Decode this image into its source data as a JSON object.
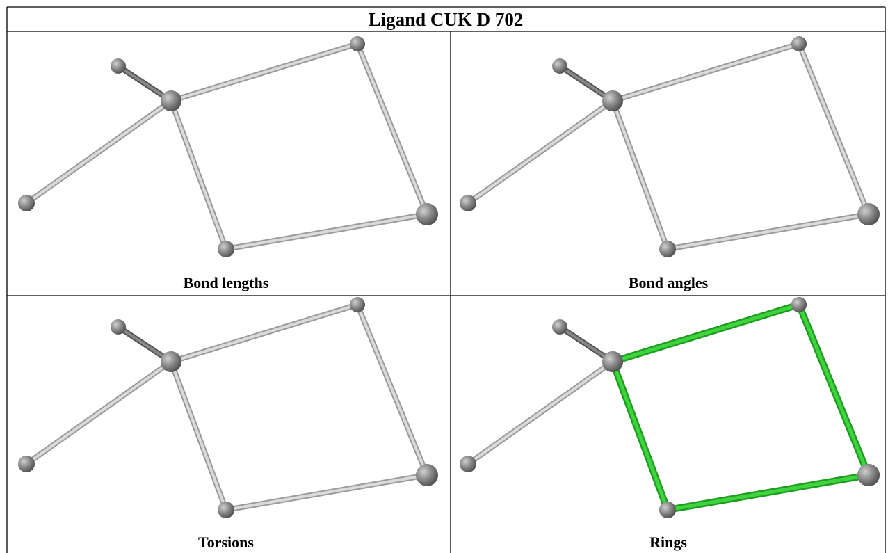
{
  "header": {
    "title": "Ligand CUK D 702"
  },
  "panels": [
    {
      "caption": "Bond lengths"
    },
    {
      "caption": "Bond angles"
    },
    {
      "caption": "Torsions"
    },
    {
      "caption": "Rings"
    }
  ]
}
